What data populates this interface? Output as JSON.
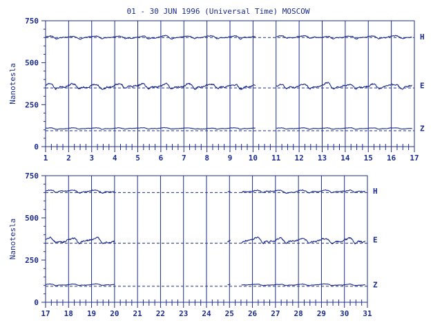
{
  "title": "01 - 30 JUN 1996 (Universal Time) MOSCOW",
  "chart_data": [
    {
      "type": "line",
      "ylabel": "Nanotesla",
      "ylim": [
        0,
        750
      ],
      "yticks": [
        "0",
        "250",
        "500",
        "750"
      ],
      "xlim": [
        1,
        17
      ],
      "xticks": [
        "1",
        "2",
        "3",
        "4",
        "5",
        "6",
        "7",
        "8",
        "9",
        "10",
        "11",
        "12",
        "13",
        "14",
        "15",
        "16",
        "17"
      ],
      "gaps": [
        [
          10.1,
          11.0
        ]
      ],
      "grid": "vertical day lines",
      "series": [
        {
          "name": "H",
          "baseline": 650,
          "level": 655,
          "amp": 12
        },
        {
          "name": "E",
          "baseline": 350,
          "level": 365,
          "amp": 22
        },
        {
          "name": "Z",
          "baseline": 95,
          "level": 110,
          "amp": 6
        }
      ]
    },
    {
      "type": "line",
      "ylabel": "Nanotesla",
      "ylim": [
        0,
        750
      ],
      "yticks": [
        "0",
        "250",
        "500",
        "750"
      ],
      "xlim": [
        17,
        31
      ],
      "xticks": [
        "17",
        "18",
        "19",
        "20",
        "21",
        "22",
        "23",
        "24",
        "25",
        "26",
        "27",
        "28",
        "29",
        "30",
        "31"
      ],
      "gaps": [
        [
          20.0,
          24.9
        ],
        [
          25.05,
          25.5
        ]
      ],
      "grid": "vertical day lines",
      "series": [
        {
          "name": "H",
          "baseline": 650,
          "level": 660,
          "amp": 12
        },
        {
          "name": "E",
          "baseline": 350,
          "level": 370,
          "amp": 22
        },
        {
          "name": "Z",
          "baseline": 95,
          "level": 105,
          "amp": 6
        }
      ]
    }
  ]
}
